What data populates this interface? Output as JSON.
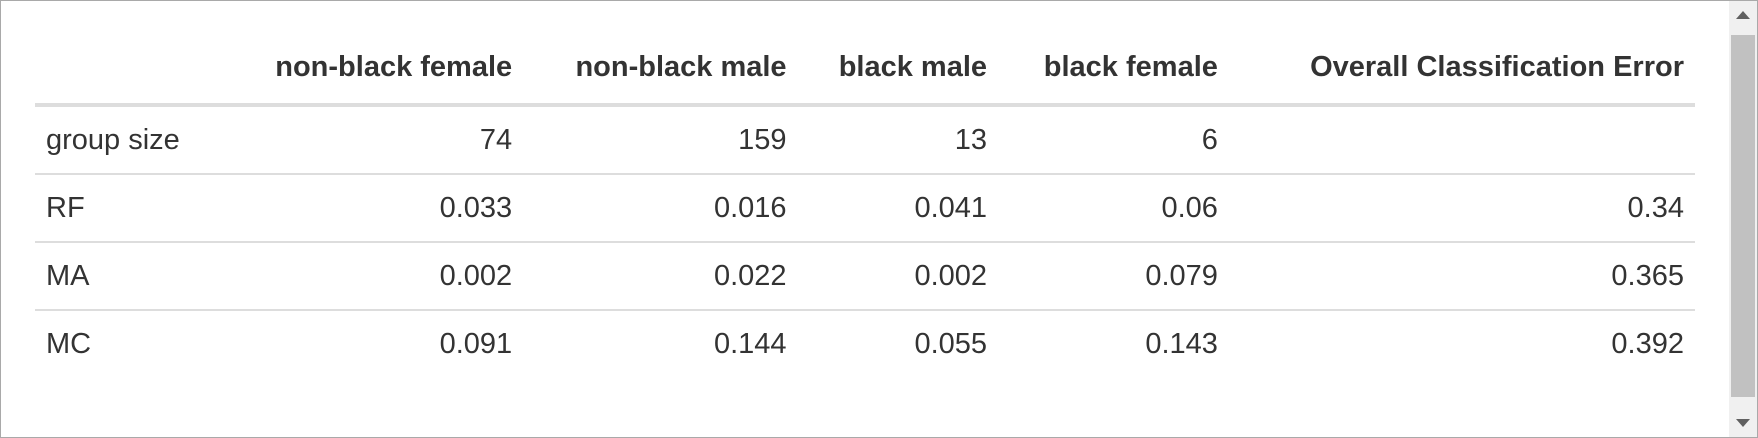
{
  "table": {
    "headers": [
      "",
      "non-black female",
      "non-black male",
      "black male",
      "black female",
      "Overall Classification Error"
    ],
    "rows": [
      {
        "label": "group size",
        "cells": [
          "74",
          "159",
          "13",
          "6",
          ""
        ]
      },
      {
        "label": "RF",
        "cells": [
          "0.033",
          "0.016",
          "0.041",
          "0.06",
          "0.34"
        ]
      },
      {
        "label": "MA",
        "cells": [
          "0.002",
          "0.022",
          "0.002",
          "0.079",
          "0.365"
        ]
      },
      {
        "label": "MC",
        "cells": [
          "0.091",
          "0.144",
          "0.055",
          "0.143",
          "0.392"
        ]
      }
    ]
  },
  "scrollbar": {
    "up_icon": "chevron-up-icon",
    "down_icon": "chevron-down-icon"
  },
  "colors": {
    "text": "#333333",
    "divider": "#dddddd",
    "scroll_track": "#f0f0f0",
    "scroll_thumb": "#c1c1c1"
  }
}
